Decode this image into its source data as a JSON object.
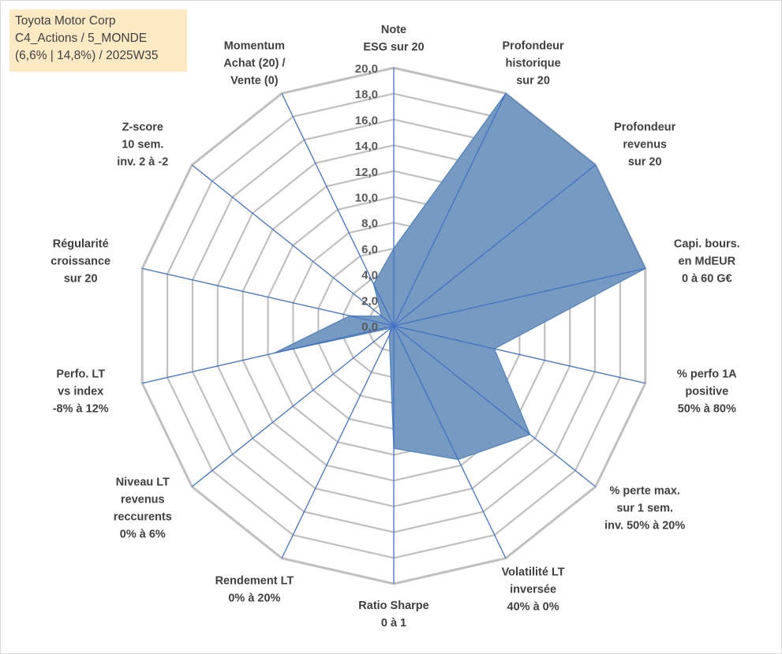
{
  "info_box": {
    "line1": "Toyota Motor Corp",
    "line2": "C4_Actions / 5_MONDE",
    "line3": "(6,6% | 14,8%) / 2025W35"
  },
  "colors": {
    "fill": "#7397c1",
    "stroke": "#4f81bd",
    "spoke": "#4472c4",
    "grid": "#c0c0c0",
    "info_bg": "#fde9c4"
  },
  "chart_data": {
    "type": "radar",
    "title": "",
    "rlim": [
      0,
      20
    ],
    "grid": true,
    "tick_labels": [
      "0,0",
      "2,0",
      "4,0",
      "6,0",
      "8,0",
      "10,0",
      "12,0",
      "14,0",
      "16,0",
      "18,0",
      "20,0"
    ],
    "axes": [
      [
        "Note",
        "ESG sur 20"
      ],
      [
        "Profondeur",
        "historique",
        "sur 20"
      ],
      [
        "Profondeur",
        "revenus",
        "sur 20"
      ],
      [
        "Capi. bours.",
        "en MdEUR",
        "0 à 60 G€"
      ],
      [
        "% perfo 1A",
        "positive",
        "50% à 80%"
      ],
      [
        "% perte max.",
        "sur 1 sem.",
        "inv. 50% à 20%"
      ],
      [
        "Volatilité LT",
        "inversée",
        "40% à 0%"
      ],
      [
        "Ratio Sharpe",
        "0 à 1"
      ],
      [
        "Rendement LT",
        "0% à 20%"
      ],
      [
        "Niveau LT",
        "revenus",
        "reccurents",
        "0% à 6%"
      ],
      [
        "Perfo. LT",
        "vs index",
        "-8% à 12%"
      ],
      [
        "Régularité",
        "croissance",
        "sur 20"
      ],
      [
        "Z-score",
        "10 sem.",
        "inv. 2 à -2"
      ],
      [
        "Momentum",
        "Achat (20) /",
        "Vente (0)"
      ]
    ],
    "series": [
      {
        "values": [
          6.0,
          20.0,
          20.0,
          20.0,
          8.0,
          13.5,
          11.5,
          9.5,
          0.8,
          0.3,
          9.5,
          3.5,
          1.2,
          3.6
        ]
      }
    ]
  }
}
